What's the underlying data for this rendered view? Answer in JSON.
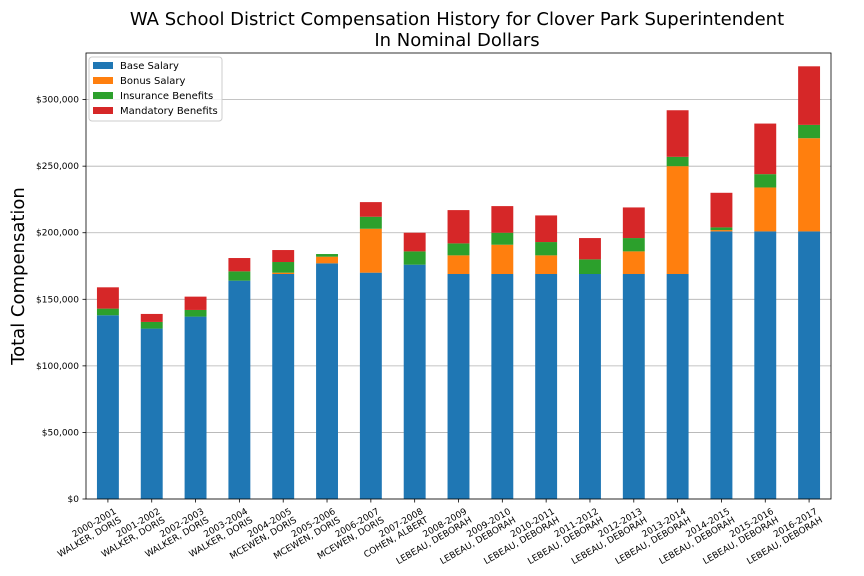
{
  "chart_data": {
    "type": "bar",
    "stacked": true,
    "title": "WA School District Compensation History for Clover Park Superintendent",
    "subtitle": "In Nominal Dollars",
    "xlabel": "",
    "ylabel": "Total Compensation",
    "ylim": [
      0,
      335000
    ],
    "yticks": [
      0,
      50000,
      100000,
      150000,
      200000,
      250000,
      300000
    ],
    "ytick_labels": [
      "$0",
      "$50,000",
      "$100,000",
      "$150,000",
      "$200,000",
      "$250,000",
      "$300,000"
    ],
    "grid": "horizontal",
    "legend_position": "top-left",
    "categories": [
      [
        "2000-2001",
        "WALKER, DORIS"
      ],
      [
        "2001-2002",
        "WALKER, DORIS"
      ],
      [
        "2002-2003",
        "WALKER, DORIS"
      ],
      [
        "2003-2004",
        "WALKER, DORIS"
      ],
      [
        "2004-2005",
        "MCEWEN, DORIS"
      ],
      [
        "2005-2006",
        "MCEWEN, DORIS"
      ],
      [
        "2006-2007",
        "MCEWEN, DORIS"
      ],
      [
        "2007-2008",
        "COHEN, ALBERT"
      ],
      [
        "2008-2009",
        "LEBEAU, DEBORAH"
      ],
      [
        "2009-2010",
        "LEBEAU, DEBORAH"
      ],
      [
        "2010-2011",
        "LEBEAU, DEBORAH"
      ],
      [
        "2011-2012",
        "LEBEAU, DEBORAH"
      ],
      [
        "2012-2013",
        "LEBEAU, DEBORAH"
      ],
      [
        "2013-2014",
        "LEBEAU, DEBORAH"
      ],
      [
        "2014-2015",
        "LEBEAU, DEBORAH"
      ],
      [
        "2015-2016",
        "LEBEAU, DEBORAH"
      ],
      [
        "2016-2017",
        "LEBEAU, DEBORAH"
      ]
    ],
    "series": [
      {
        "name": "Base Salary",
        "color": "#1f77b4",
        "values": [
          138000,
          128000,
          137000,
          164000,
          169000,
          177000,
          170000,
          176000,
          169000,
          169000,
          169000,
          169000,
          169000,
          169000,
          201000,
          201000,
          201000
        ]
      },
      {
        "name": "Bonus Salary",
        "color": "#ff7f0e",
        "values": [
          0,
          0,
          0,
          0,
          1000,
          5000,
          33000,
          0,
          14000,
          22000,
          14000,
          0,
          17000,
          81000,
          1000,
          33000,
          70000
        ]
      },
      {
        "name": "Insurance Benefits",
        "color": "#2ca02c",
        "values": [
          5000,
          5000,
          5000,
          7000,
          8000,
          2000,
          9000,
          10000,
          9000,
          9000,
          10000,
          11000,
          10000,
          7000,
          2000,
          10000,
          10000
        ]
      },
      {
        "name": "Mandatory Benefits",
        "color": "#d62728",
        "values": [
          16000,
          6000,
          10000,
          10000,
          9000,
          0,
          11000,
          14000,
          25000,
          20000,
          20000,
          16000,
          23000,
          35000,
          26000,
          38000,
          44000
        ]
      }
    ]
  }
}
